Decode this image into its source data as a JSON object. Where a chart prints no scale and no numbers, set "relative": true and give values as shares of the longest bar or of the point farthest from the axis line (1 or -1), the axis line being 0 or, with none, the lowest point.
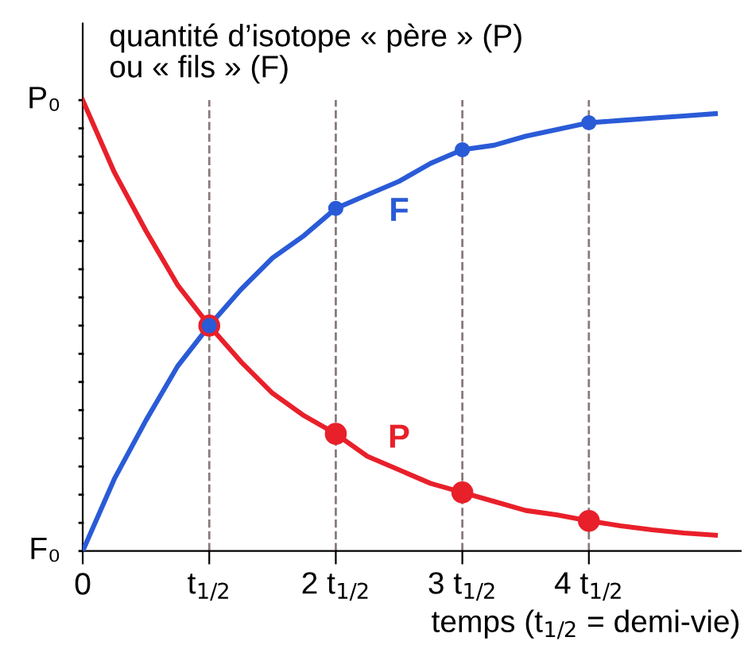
{
  "chart_data": {
    "type": "line",
    "xlabel": "temps (t$_{1/2}$ = demi-vie)",
    "ylabel": "quantité d’isotope « père » (P)\nou « fils » (F)",
    "categories": [
      "0",
      null,
      null,
      null,
      "t$_{1/2}$",
      null,
      null,
      null,
      "2 t$_{1/2}$",
      null,
      null,
      null,
      "3 t$_{1/2}$",
      null,
      null,
      null,
      "4 t$_{1/2}$",
      null,
      null,
      null,
      null
    ],
    "relative": true,
    "series": [
      {
        "name": "P",
        "color": "#e8202a",
        "values": [
          1,
          0.84,
          0.71,
          0.59,
          0.5,
          0.42,
          0.35,
          0.3,
          0.26,
          0.21,
          0.18,
          0.15,
          0.13,
          0.11,
          0.09,
          0.08,
          0.067,
          0.056,
          0.047,
          0.04,
          0.035
        ]
      },
      {
        "name": "F",
        "color": "#2a5bd7",
        "values": [
          0,
          0.16,
          0.29,
          0.41,
          0.5,
          0.58,
          0.65,
          0.7,
          0.76,
          0.79,
          0.82,
          0.86,
          0.89,
          0.9,
          0.92,
          0.935,
          0.95,
          0.955,
          0.96,
          0.965,
          0.97
        ]
      },
      {
        "type": "scatter",
        "marker": "circle",
        "color": "#e8202a",
        "values": [
          null,
          null,
          null,
          null,
          0.5,
          null,
          null,
          null,
          0.26,
          null,
          null,
          null,
          0.13,
          null,
          null,
          null,
          0.067,
          null,
          null,
          null,
          null
        ]
      },
      {
        "type": "scatter",
        "marker": "circle",
        "color": "#2a5bd7",
        "values": [
          null,
          null,
          null,
          null,
          0.5,
          null,
          null,
          null,
          0.76,
          null,
          null,
          null,
          0.89,
          null,
          null,
          null,
          0.95,
          null,
          null,
          null,
          null
        ]
      }
    ],
    "annotations": [
      {
        "text": "P₀",
        "x": "0",
        "y": 1
      },
      {
        "text": "F₀",
        "x": "0",
        "y": 0
      }
    ],
    "ref_lines": [
      {
        "axis": "x",
        "value": "t$_{1/2}$",
        "color": "#8a7a7a",
        "line_style": "dashed"
      },
      {
        "axis": "x",
        "value": "2 t$_{1/2}$",
        "color": "#8a7a7a",
        "line_style": "dashed"
      },
      {
        "axis": "x",
        "value": "3 t$_{1/2}$",
        "color": "#8a7a7a",
        "line_style": "dashed"
      },
      {
        "axis": "x",
        "value": "4 t$_{1/2}$",
        "color": "#8a7a7a",
        "line_style": "dashed"
      }
    ],
    "grid": false,
    "legend": false,
    "marker": "none",
    "line_style": "solid"
  }
}
